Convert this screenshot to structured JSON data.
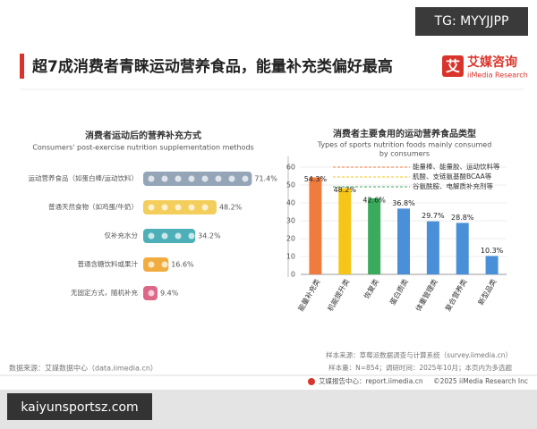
{
  "watermark": "TG: MYYJJPP",
  "title": "超7成消费者青睐运动营养食品，能量补充类偏好最高",
  "logo": {
    "mark": "艾",
    "name": "艾媒咨询",
    "en": "iiMedia Research"
  },
  "chart_data": [
    {
      "type": "pictograph",
      "title": "消费者运动后的营养补充方式",
      "subtitle": "Consumers' post-exercise nutrition supplementation methods",
      "categories": [
        "运动营养食品（如蛋白棒/运动饮料）",
        "普通天然食物（如鸡蛋/牛奶）",
        "仅补充水分",
        "普通含糖饮料或果汁",
        "无固定方式，随机补充"
      ],
      "values": [
        71.4,
        48.2,
        34.2,
        16.6,
        9.4
      ],
      "value_labels": [
        "71.4%",
        "48.2%",
        "34.2%",
        "16.6%",
        "9.4%"
      ],
      "colors": [
        "#8a9bb0",
        "#f3c94a",
        "#3aa7b0",
        "#f0a32a",
        "#d9577a"
      ]
    },
    {
      "type": "bar",
      "title": "消费者主要食用的运动营养食品类型",
      "subtitle": [
        "Types of sports nutrition foods mainly consumed",
        "by consumers"
      ],
      "categories": [
        "能量补充类",
        "机能提升类",
        "恢复类",
        "蛋白质类",
        "体重管理类",
        "复合营养类",
        "新型品类"
      ],
      "values": [
        54.3,
        48.2,
        42.6,
        36.8,
        29.7,
        28.8,
        10.3
      ],
      "value_labels": [
        "54.3%",
        "48.2%",
        "42.6%",
        "36.8%",
        "29.7%",
        "28.8%",
        "10.3%"
      ],
      "colors": [
        "#f07b3f",
        "#f5c518",
        "#3aaa5c",
        "#4a90d9",
        "#4a90d9",
        "#4a90d9",
        "#4a90d9"
      ],
      "annotations": [
        "能量棒、能量胶、运动饮料等",
        "肌酸、支链氨基酸BCAA等",
        "谷氨酰胺、电解质补充剂等"
      ],
      "ylim": [
        0,
        60
      ],
      "yticks": [
        0,
        10,
        20,
        30,
        40,
        50,
        60
      ]
    }
  ],
  "footnotes": {
    "source_left": "数据来源：艾媒数据中心（data.iimedia.cn）",
    "sample_source": "样本来源：草莓派数据调查与计算系统（survey.iimedia.cn）",
    "sample_size": "样本量：N=854；调研时间：2025年10月；本页内为多选题",
    "report_center": "艾媒报告中心：report.iimedia.cn",
    "copyright": "©2025  iiMedia Research  Inc"
  },
  "bottom_watermark": "kaiyunsportsz.com"
}
